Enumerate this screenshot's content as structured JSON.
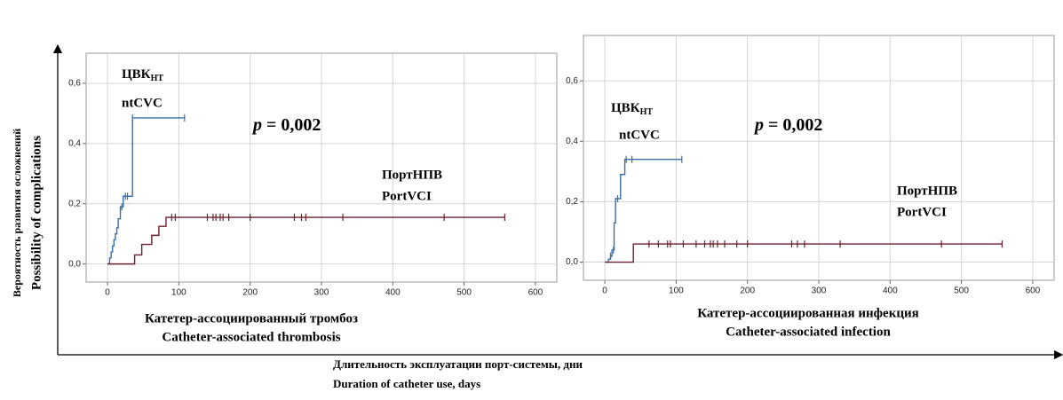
{
  "y_axis_labels": [
    "Вероятность развития осложнений",
    "Possibility of complications"
  ],
  "x_axis_labels": [
    "Длительность эксплуатации порт-системы, дни",
    "Duration of catheter use, days"
  ],
  "chart_data": [
    {
      "type": "step",
      "xlabel": [
        "Катетер-ассоциированный тромбоз",
        "Catheter-associated thrombosis"
      ],
      "annotation": {
        "italic": "p",
        "text": "= 0,002"
      },
      "xlim": [
        -30,
        630
      ],
      "ylim": [
        -0.06,
        0.7
      ],
      "xticks": [
        0,
        100,
        200,
        300,
        400,
        500,
        600
      ],
      "yticks": [
        {
          "value": 0,
          "label": "0,0"
        },
        {
          "value": 0.2,
          "label": "0,2"
        },
        {
          "value": 0.4,
          "label": "0,4"
        },
        {
          "value": 0.6,
          "label": "0,6"
        }
      ],
      "grid": true,
      "series": [
        {
          "name": "ntCVC",
          "name_ru": "ЦВК",
          "name_ru_sub": "НТ",
          "color": "#3b6fa8",
          "x": [
            0,
            3,
            5,
            7,
            9,
            11,
            13,
            15,
            18,
            22,
            35,
            108
          ],
          "values": [
            0,
            0.02,
            0.04,
            0.06,
            0.08,
            0.1,
            0.12,
            0.15,
            0.19,
            0.225,
            0.485,
            0.485
          ],
          "censored": [
            20,
            25,
            28,
            35,
            108
          ]
        },
        {
          "name": "PortVCI",
          "name_ru": "ПортНПВ",
          "color": "#6b1f2e",
          "x": [
            0,
            38,
            48,
            62,
            72,
            82,
            557
          ],
          "values": [
            0,
            0.03,
            0.065,
            0.095,
            0.125,
            0.155,
            0.155
          ],
          "censored": [
            90,
            95,
            140,
            148,
            152,
            158,
            162,
            170,
            200,
            262,
            272,
            278,
            330,
            472,
            557
          ]
        }
      ]
    },
    {
      "type": "step",
      "xlabel": [
        "Катетер-ассоциированная инфекция",
        "Catheter-associated infection"
      ],
      "annotation": {
        "italic": "p",
        "text": "= 0,002"
      },
      "xlim": [
        -30,
        630
      ],
      "ylim": [
        -0.06,
        0.75
      ],
      "xticks": [
        0,
        100,
        200,
        300,
        400,
        500,
        600
      ],
      "yticks": [
        {
          "value": 0,
          "label": "0,0"
        },
        {
          "value": 0.2,
          "label": "0,2"
        },
        {
          "value": 0.4,
          "label": "0,4"
        },
        {
          "value": 0.6,
          "label": "0,6"
        }
      ],
      "grid": true,
      "series": [
        {
          "name": "ntCVC",
          "name_ru": "ЦВК",
          "name_ru_sub": "НТ",
          "color": "#3b6fa8",
          "x": [
            0,
            5,
            8,
            10,
            13,
            15,
            22,
            28,
            108
          ],
          "values": [
            0,
            0.01,
            0.02,
            0.04,
            0.13,
            0.21,
            0.29,
            0.34,
            0.34
          ],
          "censored": [
            8,
            12,
            18,
            30,
            38,
            108
          ]
        },
        {
          "name": "PortVCI",
          "name_ru": "ПортНПВ",
          "color": "#6b1f2e",
          "x": [
            0,
            40,
            557
          ],
          "values": [
            0,
            0.06,
            0.06
          ],
          "censored": [
            62,
            75,
            88,
            92,
            110,
            128,
            140,
            148,
            152,
            158,
            168,
            185,
            200,
            262,
            270,
            280,
            330,
            472,
            557
          ]
        }
      ]
    }
  ]
}
